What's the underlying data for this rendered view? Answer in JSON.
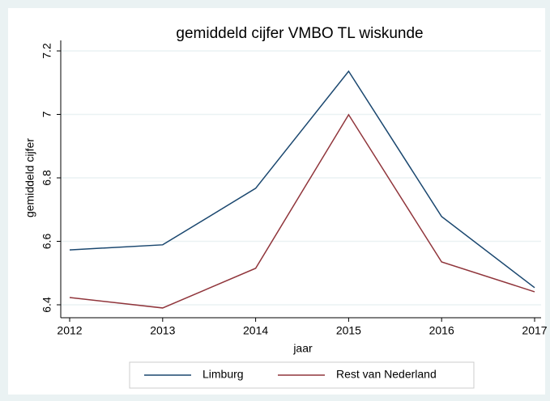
{
  "chart_data": {
    "type": "line",
    "title": "gemiddeld cijfer VMBO TL wiskunde",
    "x_label": "jaar",
    "y_label": "gemiddeld cijfer",
    "x": [
      2012,
      2013,
      2014,
      2015,
      2016,
      2017
    ],
    "series": [
      {
        "name": "Limburg",
        "color": "#1a476f",
        "values": [
          6.573,
          6.589,
          6.767,
          7.136,
          6.678,
          6.454
        ]
      },
      {
        "name": "Rest van Nederland",
        "color": "#90353b",
        "values": [
          6.423,
          6.39,
          6.515,
          6.999,
          6.535,
          6.441
        ]
      }
    ],
    "xlim": [
      2012,
      2017
    ],
    "xticks": [
      2012,
      2013,
      2014,
      2015,
      2016,
      2017
    ],
    "ylim": [
      6.4,
      7.2
    ],
    "yticks": [
      6.4,
      6.6,
      6.8,
      7,
      7.2
    ],
    "grid": true,
    "legend": "bottom"
  }
}
